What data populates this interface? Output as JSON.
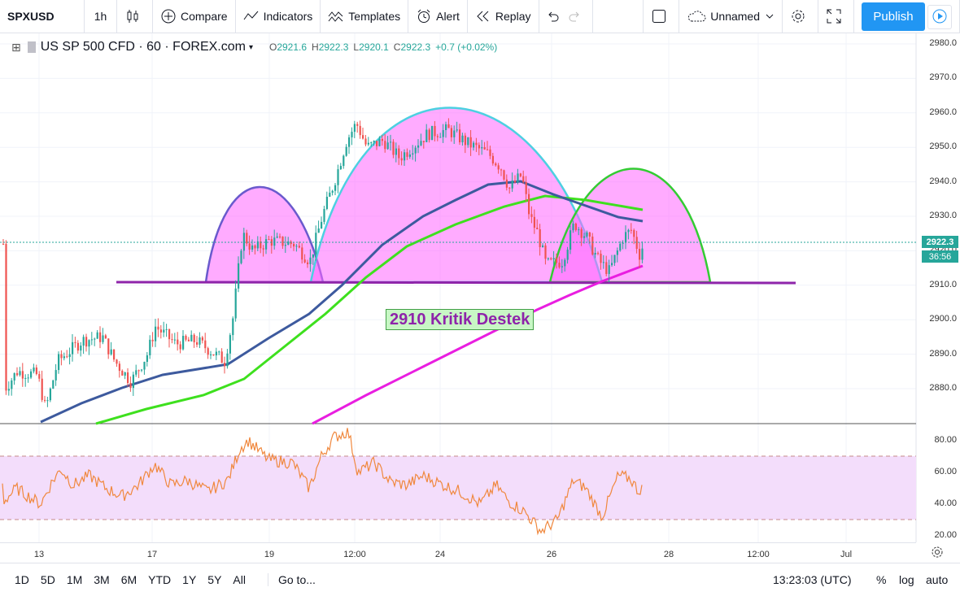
{
  "toolbar": {
    "symbol": "SPXUSD",
    "interval": "1h",
    "compare": "Compare",
    "indicators": "Indicators",
    "templates": "Templates",
    "alert": "Alert",
    "replay": "Replay",
    "layout_name": "Unnamed",
    "publish": "Publish"
  },
  "legend": {
    "title": "US SP 500 CFD · 60 · FOREX.com",
    "open_label": "O",
    "open": "2921.6",
    "high_label": "H",
    "high": "2922.3",
    "low_label": "L",
    "low": "2920.1",
    "close_label": "C",
    "close": "2922.3",
    "change": "+0.7 (+0.02%)"
  },
  "annotation": "2910 Kritik Destek",
  "price_axis": [
    "2980.0",
    "2970.0",
    "2960.0",
    "2950.0",
    "2940.0",
    "2930.0",
    "2920.0",
    "2910.0",
    "2900.0",
    "2890.0",
    "2880.0"
  ],
  "current_price": "2922.3",
  "countdown": "36:56",
  "rsi_axis": [
    "80.00",
    "60.00",
    "40.00",
    "20.00"
  ],
  "time_axis": [
    "13",
    "17",
    "19",
    "12:00",
    "24",
    "26",
    "28",
    "12:00",
    "Jul"
  ],
  "bottom": {
    "ranges": [
      "1D",
      "5D",
      "1M",
      "3M",
      "6M",
      "YTD",
      "1Y",
      "5Y",
      "All"
    ],
    "goto": "Go to...",
    "clock": "13:23:03 (UTC)",
    "percent": "%",
    "log": "log",
    "auto": "auto"
  },
  "colors": {
    "up": "#26a69a",
    "down": "#ef5350",
    "accent": "#2196f3",
    "support": "#8e24aa",
    "fill": "#ff66ff"
  }
}
